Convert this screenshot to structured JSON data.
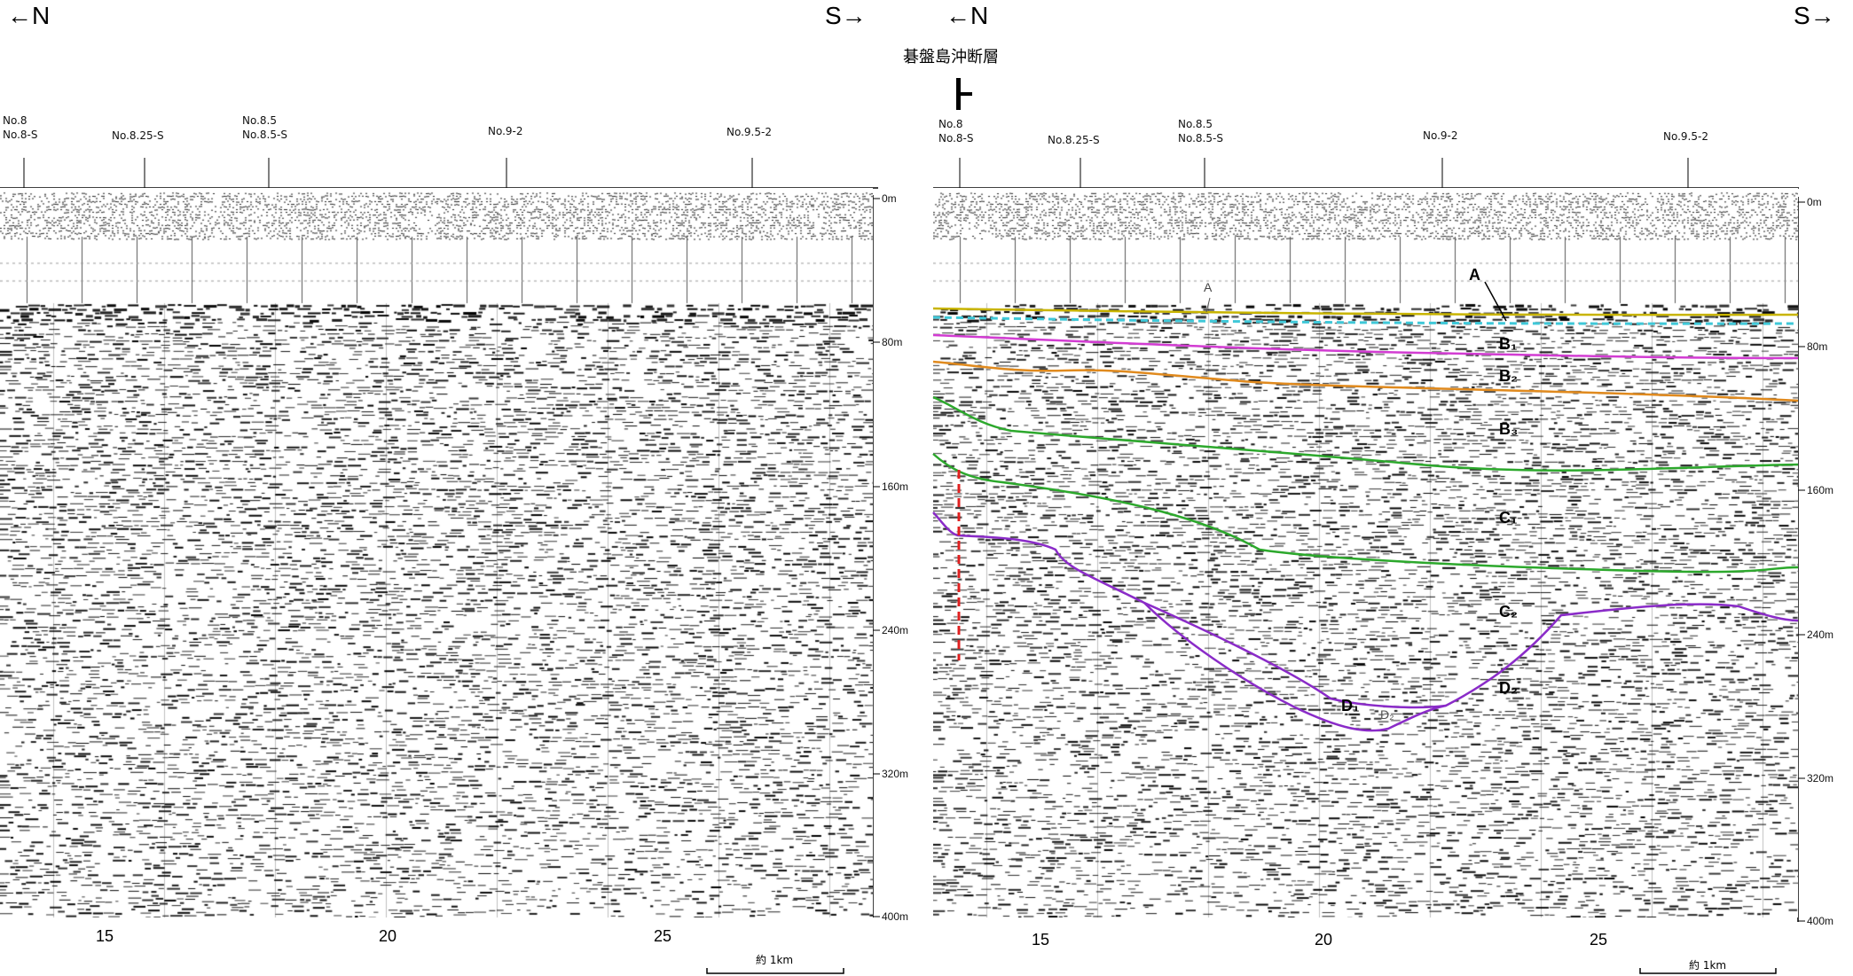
{
  "header": {
    "left_north": "←N",
    "left_south": "S→",
    "right_north": "←N",
    "right_south": "S→",
    "fault_name": "碁盤島沖断層"
  },
  "left_panel": {
    "stations": [
      {
        "line1": "No.8",
        "line2": "No.8-S"
      },
      {
        "line1": "No.8.25-S",
        "line2": ""
      },
      {
        "line1": "No.8.5",
        "line2": "No.8.5-S"
      },
      {
        "line1": "No.9-2",
        "line2": ""
      },
      {
        "line1": "No.9.5-2",
        "line2": ""
      }
    ],
    "depth_ticks": [
      "0m",
      "80m",
      "160m",
      "240m",
      "320m",
      "400m"
    ],
    "x_ticks": [
      "15",
      "20",
      "25"
    ],
    "scale_label": "約 1km"
  },
  "right_panel": {
    "stations": [
      {
        "line1": "No.8",
        "line2": "No.8-S"
      },
      {
        "line1": "No.8.25-S",
        "line2": ""
      },
      {
        "line1": "No.8.5",
        "line2": "No.8.5-S"
      },
      {
        "line1": "No.9-2",
        "line2": ""
      },
      {
        "line1": "No.9.5-2",
        "line2": ""
      }
    ],
    "depth_ticks": [
      "0m",
      "80m",
      "160m",
      "240m",
      "320m",
      "400m"
    ],
    "x_ticks": [
      "15",
      "20",
      "25"
    ],
    "scale_label": "約 1km",
    "horizon_labels": {
      "A": "A",
      "A_small": "A",
      "B1": "B₁",
      "B2": "B₂",
      "B3": "B₃",
      "C1": "C₁",
      "C2": "C₂",
      "D1": "D₁",
      "D2_small": "D₂",
      "D2": "D₂"
    },
    "horizon_colors": {
      "A": "#c8b400",
      "A_dashed": "#3fc8d8",
      "B1": "#d23cd2",
      "B2": "#e08a1e",
      "green": "#2ca82c",
      "purple": "#8a2bc8",
      "fault": "#e02020"
    }
  }
}
